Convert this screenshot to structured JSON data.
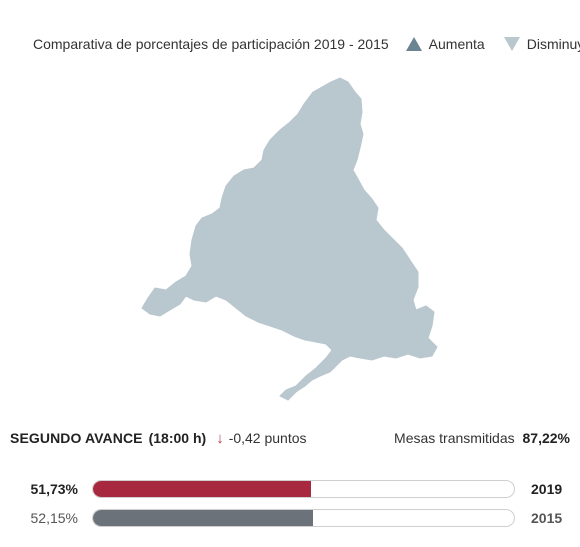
{
  "legend": {
    "title": "Comparativa de porcentajes de participación 2019 - 2015",
    "increase_label": "Aumenta",
    "decrease_label": "Disminuye"
  },
  "stats": {
    "label": "SEGUNDO AVANCE",
    "time": "(18:00 h)",
    "change_icon": "arrow-down-icon",
    "change": "-0,42 puntos",
    "mesas_label": "Mesas transmitidas",
    "mesas_value": "87,22%"
  },
  "bars": [
    {
      "year": "2019",
      "pct_label": "51,73%",
      "fraction": 0.5173,
      "color": "#a8283f"
    },
    {
      "year": "2015",
      "pct_label": "52,15%",
      "fraction": 0.5215,
      "color": "#6c7279"
    }
  ],
  "colors": {
    "map_fill": "#b9c7ce",
    "increase_icon": "#6b8491",
    "decrease_icon": "#b9c7ce"
  }
}
